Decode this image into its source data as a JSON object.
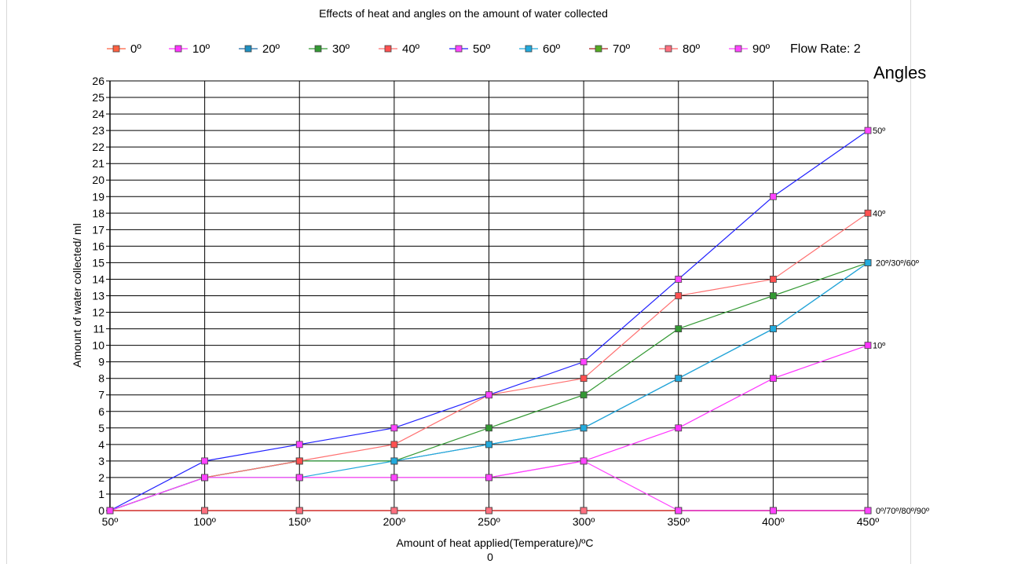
{
  "chart_data": {
    "type": "line",
    "title": "Effects of heat and angles on the amount of water collected",
    "xlabel": "Amount of heat applied(Temperature)/ºC",
    "xlabel_sub": "0",
    "ylabel": "Amount of water collected/ ml",
    "categories": [
      "50º",
      "100º",
      "150º",
      "200º",
      "250º",
      "300º",
      "350º",
      "400º",
      "450º"
    ],
    "ylim": [
      0,
      26
    ],
    "yticks": [
      0,
      1,
      2,
      3,
      4,
      5,
      6,
      7,
      8,
      9,
      10,
      11,
      12,
      13,
      14,
      15,
      16,
      17,
      18,
      19,
      20,
      21,
      22,
      23,
      24,
      25,
      26
    ],
    "grid": true,
    "legend_position": "top",
    "legend_extra": "Flow Rate: 2",
    "side_title": "Angles",
    "series": [
      {
        "name": "0º",
        "color": "#ff6040",
        "marker": "#ff6040",
        "values": [
          0,
          0,
          0,
          0,
          0,
          0,
          0,
          0,
          0
        ]
      },
      {
        "name": "10º",
        "color": "#ff33ff",
        "marker": "#ff33ff",
        "values": [
          0,
          2,
          2,
          2,
          2,
          3,
          5,
          8,
          10
        ]
      },
      {
        "name": "20º",
        "color": "#1f6aa8",
        "marker": "#1e8fc0",
        "values": [
          0,
          2,
          3,
          3,
          4,
          5,
          8,
          11,
          15
        ]
      },
      {
        "name": "30º",
        "color": "#339933",
        "marker": "#339933",
        "values": [
          0,
          2,
          3,
          3,
          5,
          7,
          11,
          13,
          15
        ]
      },
      {
        "name": "40º",
        "color": "#ff7070",
        "marker": "#ff5050",
        "values": [
          0,
          2,
          3,
          4,
          7,
          8,
          13,
          14,
          18
        ]
      },
      {
        "name": "50º",
        "color": "#2222ff",
        "marker": "#ff44ff",
        "values": [
          0,
          3,
          4,
          5,
          7,
          9,
          14,
          19,
          23
        ]
      },
      {
        "name": "60º",
        "color": "#22aadd",
        "marker": "#22aadd",
        "values": [
          0,
          2,
          2,
          3,
          4,
          5,
          8,
          11,
          15
        ]
      },
      {
        "name": "70º",
        "color": "#aa2222",
        "marker": "#55aa22",
        "values": [
          0,
          0,
          0,
          0,
          0,
          0,
          0,
          0,
          0
        ]
      },
      {
        "name": "80º",
        "color": "#ff6060",
        "marker": "#ff7080",
        "values": [
          0,
          0,
          0,
          0,
          0,
          0,
          0,
          0,
          0
        ]
      },
      {
        "name": "90º",
        "color": "#ff44ff",
        "marker": "#ff44ff",
        "values": [
          0,
          2,
          2,
          2,
          2,
          3,
          0,
          0,
          0
        ]
      }
    ],
    "end_annotations": [
      {
        "label": "50º",
        "value": 23
      },
      {
        "label": "40º",
        "value": 18
      },
      {
        "label": "20º/30º/60º",
        "value": 15
      },
      {
        "label": "10º",
        "value": 10
      },
      {
        "label": "0º/70º/80º/90º",
        "value": 0
      }
    ]
  }
}
